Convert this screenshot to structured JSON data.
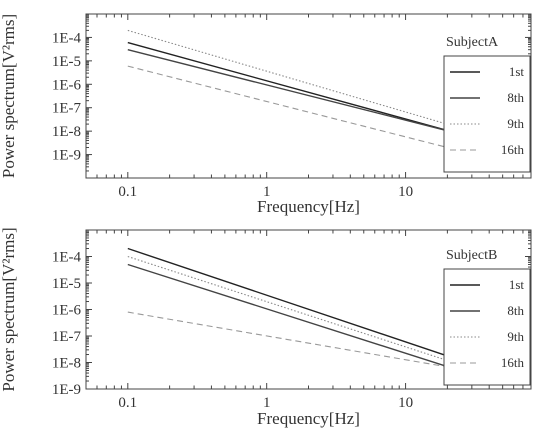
{
  "chart_data": [
    {
      "type": "line",
      "title": "",
      "panel_label": "SubjectA",
      "xlabel": "Frequency[Hz]",
      "ylabel": "Power spectrum[V²rms]",
      "xscale": "log",
      "yscale": "log",
      "xlim": [
        0.05,
        80
      ],
      "ylim": [
        1e-10,
        0.001
      ],
      "xticks": [
        0.1,
        1,
        10
      ],
      "xtick_labels": [
        "0.1",
        "1",
        "10"
      ],
      "yticks": [
        1e-09,
        1e-08,
        1e-07,
        1e-06,
        1e-05,
        0.0001
      ],
      "ytick_labels": [
        "1E-9",
        "1E-8",
        "1E-7",
        "1E-6",
        "1E-5",
        "1E-4"
      ],
      "grid": false,
      "legend_position": "top-right",
      "series": [
        {
          "name": "1st",
          "x": [
            0.1,
            50
          ],
          "y": [
            6e-05,
            2.4e-09
          ],
          "style": "solid",
          "color": "#222222"
        },
        {
          "name": "8th",
          "x": [
            0.1,
            50
          ],
          "y": [
            3e-05,
            2.6e-09
          ],
          "style": "solid",
          "color": "#444444"
        },
        {
          "name": "9th",
          "x": [
            0.1,
            50
          ],
          "y": [
            0.0002,
            4e-09
          ],
          "style": "dotted",
          "color": "#888888"
        },
        {
          "name": "16th",
          "x": [
            0.1,
            50
          ],
          "y": [
            6e-06,
            5e-10
          ],
          "style": "dashed",
          "color": "#999999"
        }
      ]
    },
    {
      "type": "line",
      "title": "",
      "panel_label": "SubjectB",
      "xlabel": "Frequency[Hz]",
      "ylabel": "Power spectrum[V²rms]",
      "xscale": "log",
      "yscale": "log",
      "xlim": [
        0.05,
        80
      ],
      "ylim": [
        1e-09,
        0.001
      ],
      "xticks": [
        0.1,
        1,
        10
      ],
      "xtick_labels": [
        "0.1",
        "1",
        "10"
      ],
      "yticks": [
        1e-09,
        1e-08,
        1e-07,
        1e-06,
        1e-05,
        0.0001
      ],
      "ytick_labels": [
        "1E-9",
        "1E-8",
        "1E-7",
        "1E-6",
        "1E-5",
        "1E-4"
      ],
      "grid": false,
      "legend_position": "top-right",
      "series": [
        {
          "name": "1st",
          "x": [
            0.1,
            50
          ],
          "y": [
            0.0002,
            3.5e-09
          ],
          "style": "solid",
          "color": "#222222"
        },
        {
          "name": "8th",
          "x": [
            0.1,
            50
          ],
          "y": [
            5e-05,
            1.5e-09
          ],
          "style": "solid",
          "color": "#444444"
        },
        {
          "name": "9th",
          "x": [
            0.1,
            50
          ],
          "y": [
            0.0001,
            2.5e-09
          ],
          "style": "dotted",
          "color": "#888888"
        },
        {
          "name": "16th",
          "x": [
            0.1,
            50
          ],
          "y": [
            8e-07,
            3e-09
          ],
          "style": "dashed",
          "color": "#999999"
        }
      ]
    }
  ]
}
